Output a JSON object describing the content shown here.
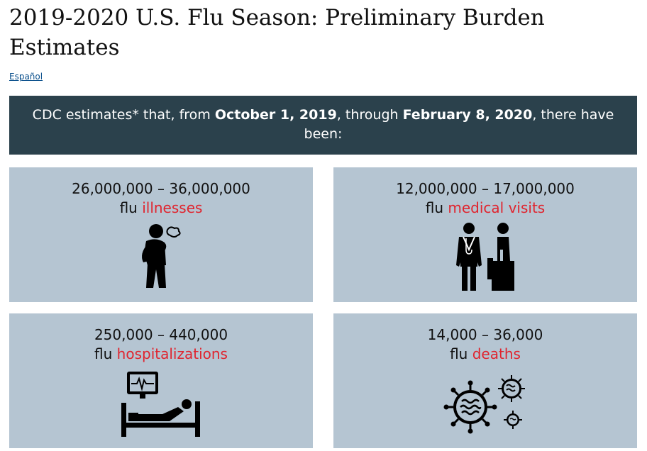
{
  "header": {
    "title": "2019-2020 U.S. Flu Season: Preliminary Burden Estimates",
    "language_link": "Español"
  },
  "banner": {
    "text_pre": "CDC estimates* that, from ",
    "date_start": "October 1, 2019",
    "text_mid": ", through ",
    "date_end": "February 8, 2020",
    "text_post": ", there have been:"
  },
  "cards": [
    {
      "range": "26,000,000 – 36,000,000",
      "prefix": "flu",
      "category": "illnesses",
      "icon": "sick-person-icon"
    },
    {
      "range": "12,000,000 – 17,000,000",
      "prefix": "flu",
      "category": "medical visits",
      "icon": "doctor-patient-icon"
    },
    {
      "range": "250,000 – 440,000",
      "prefix": "flu",
      "category": "hospitalizations",
      "icon": "hospital-bed-icon"
    },
    {
      "range": "14,000 – 36,000",
      "prefix": "flu",
      "category": "deaths",
      "icon": "virus-icon"
    }
  ],
  "colors": {
    "banner_bg": "#2b414c",
    "card_bg": "#b5c5d2",
    "accent_red": "#e0242e",
    "link": "#0a4f8c"
  }
}
